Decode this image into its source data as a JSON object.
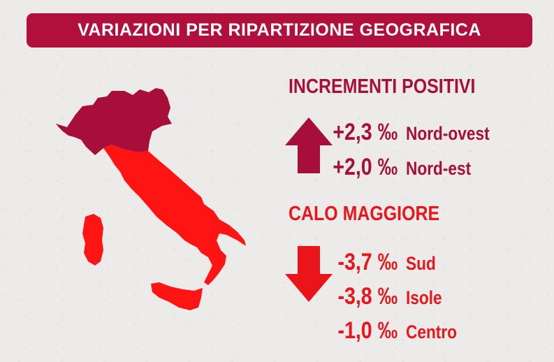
{
  "title": "VARIAZIONI PER RIPARTIZIONE GEOGRAFICA",
  "colors": {
    "background": "#ecebe9",
    "title_bar": "#b10f3c",
    "positive": "#a70f3a",
    "negative": "#e9151b",
    "map_north": "#a70f3a",
    "map_south": "#ff1414"
  },
  "map": {
    "icon": "italy-map-icon"
  },
  "positive_section": {
    "heading": "INCREMENTI POSITIVI",
    "icon": "arrow-up-icon",
    "items": [
      {
        "value": "+2,3 ‰",
        "region": "Nord-ovest"
      },
      {
        "value": "+2,0 ‰",
        "region": "Nord-est"
      }
    ]
  },
  "negative_section": {
    "heading": "CALO MAGGIORE",
    "icon": "arrow-down-icon",
    "items": [
      {
        "value": "-3,7 ‰",
        "region": "Sud"
      },
      {
        "value": "-3,8 ‰",
        "region": "Isole"
      },
      {
        "value": "-1,0 ‰",
        "region": "Centro"
      }
    ]
  }
}
